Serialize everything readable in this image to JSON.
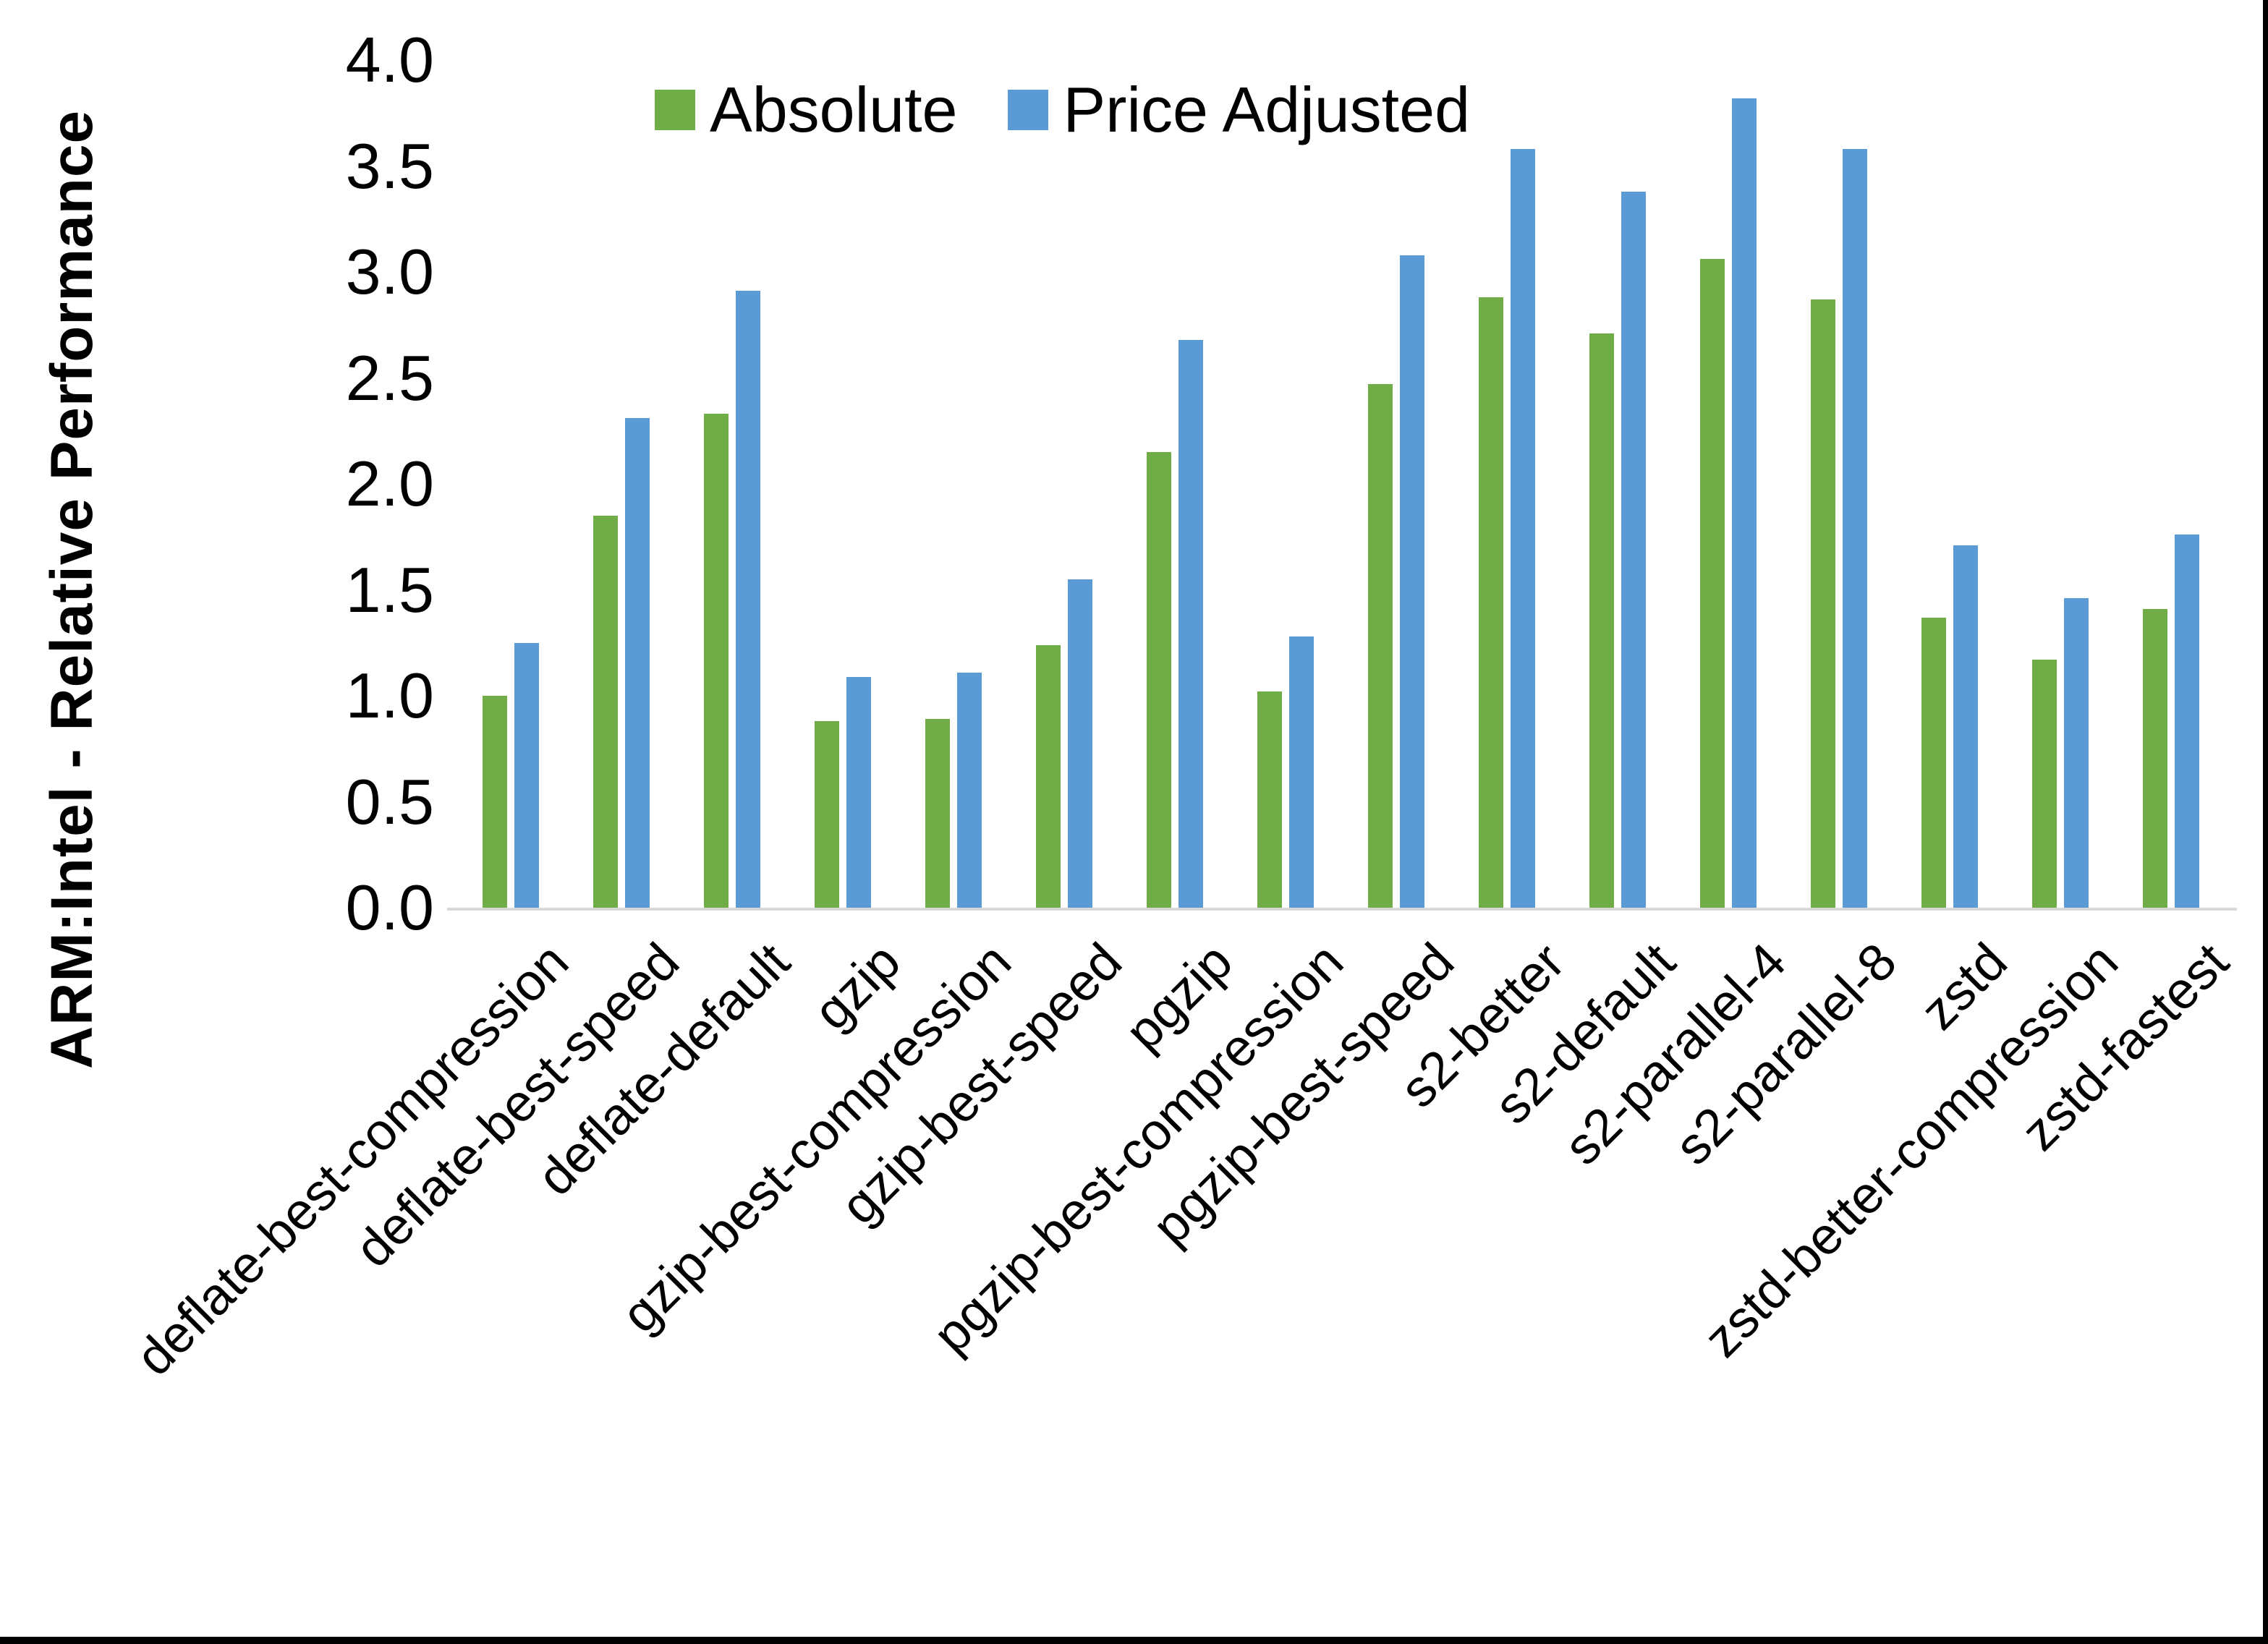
{
  "chart": {
    "y_title": "ARM:Intel - Relative Performance",
    "y_tick_labels": [
      "4.0",
      "3.5",
      "3.0",
      "2.5",
      "2.0",
      "1.5",
      "1.0",
      "0.5",
      "0.0"
    ],
    "colors": {
      "absolute": "#70AD47",
      "price_adjusted": "#5B9BD5",
      "axis_line": "#D9D9D9",
      "text": "#000000",
      "edge": "#000000"
    }
  },
  "chart_data": {
    "type": "bar",
    "title": "",
    "xlabel": "",
    "ylabel": "ARM:Intel - Relative Performance",
    "ylim": [
      0.0,
      4.0
    ],
    "ytick_step": 0.5,
    "grid": false,
    "legend_position": "top",
    "categories": [
      "deflate-best-compression",
      "deflate-best-speed",
      "deflate-default",
      "gzip",
      "gzip-best-compression",
      "gzip-best-speed",
      "pgzip",
      "pgzip-best-compression",
      "pgzip-best-speed",
      "s2-better",
      "s2-default",
      "s2-parallel-4",
      "s2-parallel-8",
      "zstd",
      "zstd-better-compression",
      "zstd-fastest"
    ],
    "series": [
      {
        "name": "Absolute",
        "color": "#70AD47",
        "values": [
          1.0,
          1.85,
          2.33,
          0.88,
          0.89,
          1.24,
          2.15,
          1.02,
          2.47,
          2.88,
          2.71,
          3.06,
          2.87,
          1.37,
          1.17,
          1.41
        ]
      },
      {
        "name": "Price Adjusted",
        "color": "#5B9BD5",
        "values": [
          1.25,
          2.31,
          2.91,
          1.09,
          1.11,
          1.55,
          2.68,
          1.28,
          3.08,
          3.58,
          3.38,
          3.82,
          3.58,
          1.71,
          1.46,
          1.76
        ]
      }
    ]
  }
}
